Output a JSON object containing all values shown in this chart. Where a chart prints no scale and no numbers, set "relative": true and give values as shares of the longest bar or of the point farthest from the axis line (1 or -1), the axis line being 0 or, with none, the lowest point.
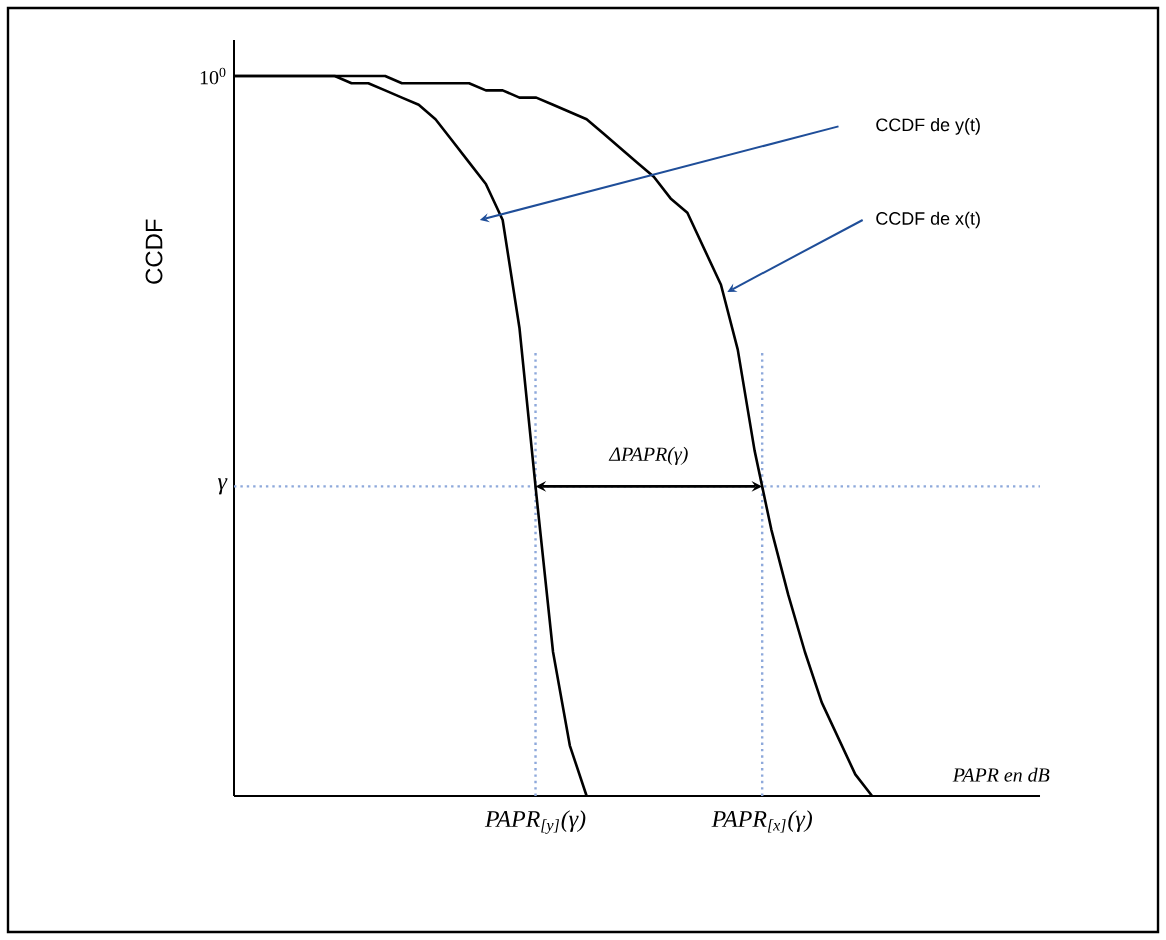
{
  "chart_data": {
    "type": "line",
    "relative": true,
    "xlabel": "PAPR en dB",
    "ylabel": "CCDF",
    "categories": [
      null,
      null,
      null,
      null,
      null,
      null,
      null,
      null,
      null,
      null,
      null,
      null,
      null,
      null,
      null,
      null,
      null,
      null,
      null,
      null,
      null,
      null,
      null,
      null,
      null,
      null,
      null,
      null,
      null,
      null,
      null,
      null,
      null,
      null,
      null,
      null,
      null,
      null,
      null,
      null,
      null,
      null,
      null,
      null,
      null,
      null,
      null,
      null,
      null
    ],
    "series": [
      {
        "name": "CCDF de y(t)",
        "color": "#000000",
        "values": [
          1,
          1,
          1,
          1,
          1,
          1,
          1,
          0.99,
          0.99,
          0.98,
          0.97,
          0.96,
          0.94,
          0.91,
          0.88,
          0.85,
          0.8,
          0.65,
          0.42,
          0.2,
          0.07,
          0,
          null,
          null,
          null,
          null,
          null,
          null,
          null,
          null,
          null,
          null,
          null,
          null,
          null,
          null,
          null,
          null,
          null,
          null,
          null,
          null,
          null,
          null,
          null,
          null,
          null,
          null,
          null
        ]
      },
      {
        "name": "CCDF de x(t)",
        "color": "#000000",
        "values": [
          1,
          1,
          1,
          1,
          1,
          1,
          1,
          1,
          1,
          1,
          0.99,
          0.99,
          0.99,
          0.99,
          0.99,
          0.98,
          0.98,
          0.97,
          0.97,
          0.96,
          0.95,
          0.94,
          0.92,
          0.9,
          0.88,
          0.86,
          0.83,
          0.81,
          0.76,
          0.71,
          0.62,
          0.48,
          0.37,
          0.28,
          0.2,
          0.13,
          0.08,
          0.03,
          0,
          null,
          null,
          null,
          null,
          null,
          null,
          null,
          null,
          null,
          null
        ]
      }
    ],
    "ref_lines": [
      {
        "axis": "y",
        "value": 0.43,
        "label": "γ",
        "color": "#8ea9db",
        "line_style": "dotted"
      }
    ],
    "annotations": [
      "10$^{0}$",
      {
        "text": "ΔPAPR(γ)",
        "y": 0.43
      },
      "PAPR$_{[y]}$(γ)",
      "PAPR$_{[x]}$(γ)"
    ]
  }
}
